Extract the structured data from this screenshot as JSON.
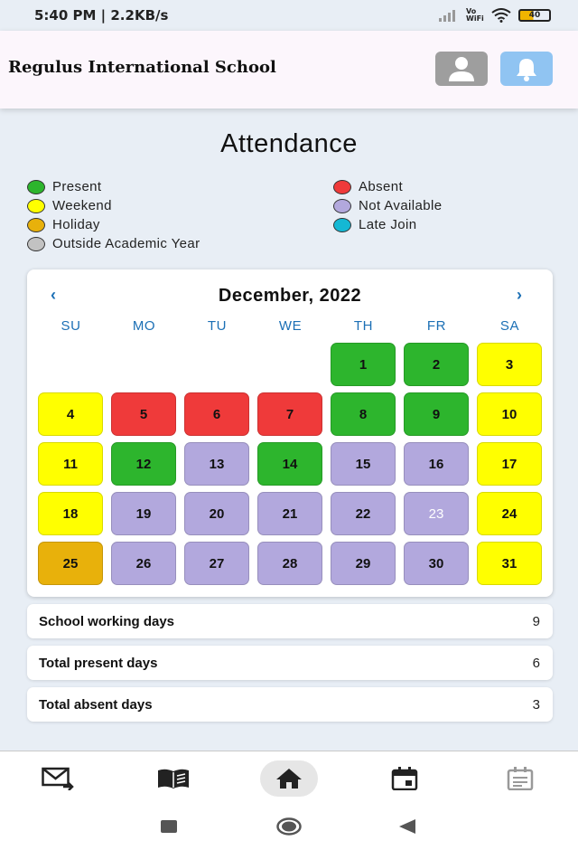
{
  "status": {
    "time_speed": "5:40 PM | 2.2KB/s",
    "volte": "Vo WiFi",
    "battery": "40"
  },
  "header": {
    "school_name": "Regulus International School",
    "profile_icon": "person-icon",
    "bell_icon": "bell-icon"
  },
  "page_title": "Attendance",
  "legend": [
    {
      "label": "Present",
      "color": "#2db52d"
    },
    {
      "label": "Absent",
      "color": "#ef3a3a"
    },
    {
      "label": "Weekend",
      "color": "#ffff00"
    },
    {
      "label": "Not Available",
      "color": "#b2a8dd"
    },
    {
      "label": "Holiday",
      "color": "#e8b10b"
    },
    {
      "label": "Late Join",
      "color": "#14b8d4"
    },
    {
      "label": "Outside Academic Year",
      "color": "#c2c2c2"
    }
  ],
  "calendar": {
    "month_label": "December, 2022",
    "prev_label": "‹",
    "next_label": "›",
    "weekdays": [
      "SU",
      "MO",
      "TU",
      "WE",
      "TH",
      "FR",
      "SA"
    ],
    "start_offset": 4,
    "days": [
      {
        "n": "1",
        "status": "Present"
      },
      {
        "n": "2",
        "status": "Present"
      },
      {
        "n": "3",
        "status": "Weekend"
      },
      {
        "n": "4",
        "status": "Weekend"
      },
      {
        "n": "5",
        "status": "Absent"
      },
      {
        "n": "6",
        "status": "Absent"
      },
      {
        "n": "7",
        "status": "Absent"
      },
      {
        "n": "8",
        "status": "Present"
      },
      {
        "n": "9",
        "status": "Present"
      },
      {
        "n": "10",
        "status": "Weekend"
      },
      {
        "n": "11",
        "status": "Weekend"
      },
      {
        "n": "12",
        "status": "Present"
      },
      {
        "n": "13",
        "status": "Not Available"
      },
      {
        "n": "14",
        "status": "Present"
      },
      {
        "n": "15",
        "status": "Not Available"
      },
      {
        "n": "16",
        "status": "Not Available"
      },
      {
        "n": "17",
        "status": "Weekend"
      },
      {
        "n": "18",
        "status": "Weekend"
      },
      {
        "n": "19",
        "status": "Not Available"
      },
      {
        "n": "20",
        "status": "Not Available"
      },
      {
        "n": "21",
        "status": "Not Available"
      },
      {
        "n": "22",
        "status": "Not Available"
      },
      {
        "n": "23",
        "status": "Not Available",
        "today": true
      },
      {
        "n": "24",
        "status": "Weekend"
      },
      {
        "n": "25",
        "status": "Holiday"
      },
      {
        "n": "26",
        "status": "Not Available"
      },
      {
        "n": "27",
        "status": "Not Available"
      },
      {
        "n": "28",
        "status": "Not Available"
      },
      {
        "n": "29",
        "status": "Not Available"
      },
      {
        "n": "30",
        "status": "Not Available"
      },
      {
        "n": "31",
        "status": "Weekend"
      }
    ]
  },
  "summary": [
    {
      "label": "School working days",
      "value": "9"
    },
    {
      "label": "Total present days",
      "value": "6"
    },
    {
      "label": "Total absent days",
      "value": "3"
    }
  ],
  "bottom_nav": [
    {
      "icon": "mail-send-icon"
    },
    {
      "icon": "book-icon"
    },
    {
      "icon": "home-icon",
      "active": true
    },
    {
      "icon": "calendar-icon"
    },
    {
      "icon": "notes-icon"
    }
  ],
  "system_nav": [
    {
      "icon": "recents-icon"
    },
    {
      "icon": "home-circle-icon"
    },
    {
      "icon": "back-icon"
    }
  ]
}
